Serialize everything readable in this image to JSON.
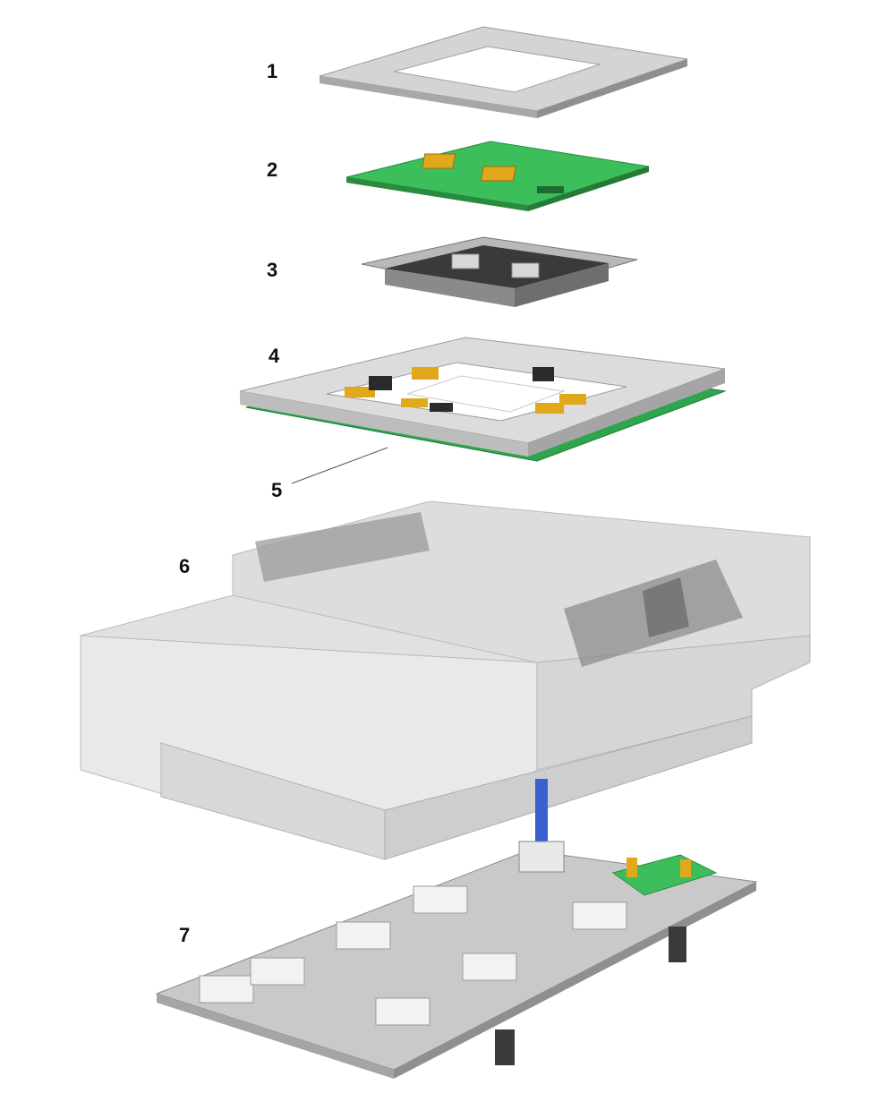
{
  "callouts": [
    {
      "id": "1",
      "label": "1"
    },
    {
      "id": "2",
      "label": "2"
    },
    {
      "id": "3",
      "label": "3"
    },
    {
      "id": "4",
      "label": "4"
    },
    {
      "id": "5",
      "label": "5"
    },
    {
      "id": "6",
      "label": "6"
    },
    {
      "id": "7",
      "label": "7"
    }
  ],
  "colors": {
    "plate": "#c9c9c9",
    "plate_dark": "#9a9a9a",
    "pcb_green": "#3cbf5a",
    "pcb_dark": "#2a8a3e",
    "gold": "#e0a81a",
    "black_part": "#2b2b2b",
    "housing": "#cfcfcf",
    "ribbon": "#3a5fd0"
  }
}
